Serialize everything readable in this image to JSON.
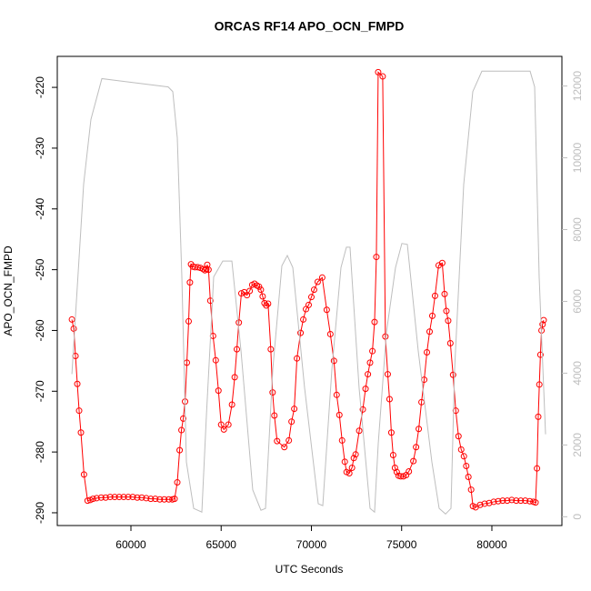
{
  "chart_data": {
    "type": "line",
    "title": "ORCAS RF14 APO_OCN_FMPD",
    "x_label": "UTC Seconds",
    "y_label": "APO_OCN_FMPD",
    "xlim": [
      55920,
      83880
    ],
    "xticks": [
      60000,
      65000,
      70000,
      75000,
      80000
    ],
    "ylim": [
      -292.1,
      -214.9
    ],
    "yticks": [
      -290,
      -280,
      -270,
      -260,
      -250,
      -240,
      -230,
      -220
    ],
    "y2lim": [
      -245,
      12826
    ],
    "y2ticks": [
      0,
      2000,
      4000,
      6000,
      8000,
      10000,
      12000
    ],
    "y2tick_color": "#bebebe",
    "series": [
      {
        "color": "#ff0000",
        "marker": "circle",
        "x": [
          56730,
          56830,
          56930,
          57030,
          57130,
          57230,
          57400,
          57600,
          57750,
          57900,
          58100,
          58350,
          58600,
          58850,
          59100,
          59350,
          59600,
          59850,
          60100,
          60350,
          60600,
          60850,
          61100,
          61350,
          61600,
          61850,
          62100,
          62300,
          62420,
          62570,
          62700,
          62800,
          62900,
          63000,
          63100,
          63200,
          63270,
          63330,
          63430,
          63550,
          63700,
          63850,
          64000,
          64100,
          64180,
          64230,
          64300,
          64400,
          64550,
          64700,
          64850,
          65000,
          65150,
          65400,
          65600,
          65750,
          65870,
          65980,
          66120,
          66280,
          66430,
          66580,
          66720,
          66850,
          66980,
          67100,
          67200,
          67300,
          67400,
          67500,
          67600,
          67750,
          67850,
          67950,
          68100,
          68500,
          68750,
          68900,
          69050,
          69200,
          69400,
          69550,
          69700,
          69850,
          70000,
          70150,
          70350,
          70600,
          70850,
          71050,
          71250,
          71400,
          71550,
          71700,
          71850,
          71950,
          72100,
          72250,
          72350,
          72450,
          72650,
          72850,
          73000,
          73130,
          73250,
          73380,
          73500,
          73600,
          73700,
          73950,
          74100,
          74230,
          74330,
          74430,
          74530,
          74630,
          74730,
          74830,
          74950,
          75100,
          75250,
          75400,
          75650,
          75800,
          75950,
          76100,
          76250,
          76400,
          76550,
          76700,
          76850,
          77050,
          77250,
          77380,
          77480,
          77580,
          77700,
          77850,
          78000,
          78150,
          78300,
          78450,
          78580,
          78700,
          78850,
          78950,
          79100,
          79350,
          79600,
          79850,
          80100,
          80350,
          80600,
          80850,
          81100,
          81350,
          81600,
          81850,
          82100,
          82300,
          82420,
          82500,
          82570,
          82630,
          82690,
          82750,
          82810,
          82870
        ],
        "values": [
          -258.2,
          -259.7,
          -264.2,
          -268.8,
          -273.2,
          -276.8,
          -283.7,
          -288.0,
          -287.9,
          -287.7,
          -287.6,
          -287.5,
          -287.5,
          -287.4,
          -287.4,
          -287.4,
          -287.4,
          -287.4,
          -287.4,
          -287.5,
          -287.5,
          -287.6,
          -287.7,
          -287.7,
          -287.8,
          -287.8,
          -287.8,
          -287.8,
          -287.7,
          -285.0,
          -279.7,
          -276.4,
          -274.5,
          -271.7,
          -265.3,
          -258.5,
          -252.1,
          -249.1,
          -249.5,
          -249.6,
          -249.6,
          -249.7,
          -249.9,
          -250.1,
          -249.9,
          -249.2,
          -250.0,
          -255.1,
          -260.9,
          -264.9,
          -269.9,
          -275.5,
          -276.3,
          -275.5,
          -272.2,
          -267.7,
          -263.1,
          -258.7,
          -253.9,
          -253.7,
          -254.2,
          -253.5,
          -252.5,
          -252.3,
          -252.6,
          -252.8,
          -253.3,
          -254.4,
          -255.5,
          -255.9,
          -255.6,
          -263.1,
          -270.2,
          -274.0,
          -278.2,
          -279.2,
          -278.1,
          -275.0,
          -272.9,
          -264.6,
          -260.4,
          -258.2,
          -256.5,
          -255.8,
          -254.5,
          -253.3,
          -252.0,
          -251.3,
          -256.6,
          -260.6,
          -265.0,
          -270.6,
          -273.9,
          -278.1,
          -281.6,
          -283.3,
          -283.5,
          -282.6,
          -281.0,
          -280.4,
          -276.5,
          -273.0,
          -269.6,
          -267.2,
          -265.3,
          -263.4,
          -258.6,
          -247.9,
          -217.5,
          -218.2,
          -261.0,
          -267.2,
          -271.3,
          -276.8,
          -280.5,
          -282.6,
          -283.3,
          -283.9,
          -284.0,
          -284.0,
          -283.8,
          -283.2,
          -281.5,
          -279.2,
          -276.2,
          -271.8,
          -268.1,
          -263.6,
          -260.2,
          -257.6,
          -254.3,
          -249.3,
          -248.9,
          -254.0,
          -256.8,
          -258.4,
          -262.1,
          -267.3,
          -273.2,
          -277.4,
          -279.6,
          -280.7,
          -282.3,
          -284.1,
          -286.2,
          -288.9,
          -289.1,
          -288.7,
          -288.5,
          -288.4,
          -288.2,
          -288.1,
          -288.0,
          -288.0,
          -287.9,
          -288.0,
          -288.0,
          -288.0,
          -288.1,
          -288.2,
          -288.3,
          -282.7,
          -274.2,
          -268.9,
          -264.0,
          -260.0,
          -259.0,
          -258.3
        ]
      },
      {
        "color": "#bebebe",
        "axis": "y2",
        "x": [
          56730,
          57380,
          57784,
          58390,
          62066,
          62319,
          62570,
          62822,
          63074,
          63477,
          63930,
          64182,
          64586,
          65090,
          65594,
          66100,
          66750,
          67205,
          67457,
          67860,
          68364,
          68666,
          68970,
          69623,
          70380,
          70631,
          71135,
          71638,
          71940,
          72140,
          72644,
          73250,
          73500,
          73704,
          74157,
          74660,
          75013,
          75316,
          75920,
          76676,
          77079,
          77432,
          77734,
          77935,
          78440,
          78943,
          79447,
          82118,
          82370,
          82620,
          82974
        ],
        "values": [
          3974,
          9264,
          11070,
          12206,
          11974,
          11845,
          10555,
          6684,
          1523,
          232,
          129,
          2813,
          6684,
          7123,
          7123,
          4619,
          748,
          181,
          232,
          4103,
          6994,
          7277,
          6942,
          3587,
          361,
          310,
          4103,
          6942,
          7510,
          7510,
          3587,
          232,
          129,
          2039,
          5135,
          6942,
          7613,
          7587,
          4619,
          1523,
          232,
          77,
          232,
          4103,
          9264,
          11845,
          12413,
          12413,
          11974,
          6684,
          2297
        ]
      }
    ]
  }
}
